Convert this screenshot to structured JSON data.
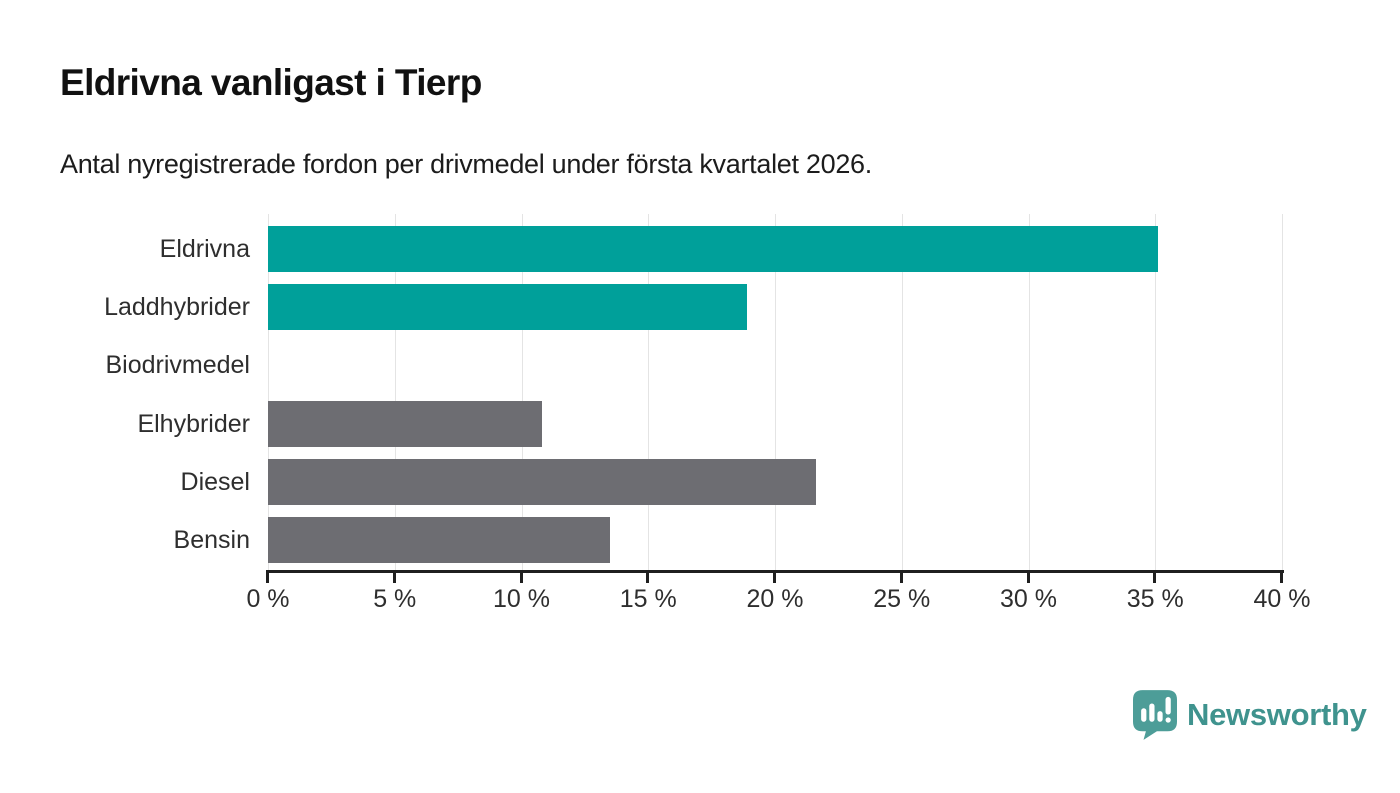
{
  "chart_data": {
    "type": "bar",
    "orientation": "horizontal",
    "title": "Eldrivna vanligast i Tierp",
    "subtitle": "Antal nyregistrerade fordon per drivmedel under första kvartalet 2026.",
    "categories": [
      "Eldrivna",
      "Laddhybrider",
      "Biodrivmedel",
      "Elhybrider",
      "Diesel",
      "Bensin"
    ],
    "values": [
      35.1,
      18.9,
      0,
      10.8,
      21.6,
      13.5
    ],
    "unit": "%",
    "xlabel": "",
    "ylabel": "",
    "xlim": [
      0,
      40
    ],
    "x_ticks": [
      0,
      5,
      10,
      15,
      20,
      25,
      30,
      35,
      40
    ],
    "x_tick_labels": [
      "0 %",
      "5 %",
      "10 %",
      "15 %",
      "20 %",
      "25 %",
      "30 %",
      "35 %",
      "40 %"
    ],
    "grid": "vertical-gridlines",
    "legend": "none",
    "bar_colors": [
      "#00a09a",
      "#00a09a",
      "#6d6d72",
      "#6d6d72",
      "#6d6d72",
      "#6d6d72"
    ],
    "colors": {
      "highlight": "#00a09a",
      "default": "#6d6d72",
      "gridline": "#e4e4e4",
      "axis": "#1f1f1f"
    }
  },
  "brand": {
    "name": "Newsworthy",
    "icon": "newsworthy-pin-chart-icon",
    "icon_color": "#4d9d98",
    "text_color": "#3f938e"
  }
}
